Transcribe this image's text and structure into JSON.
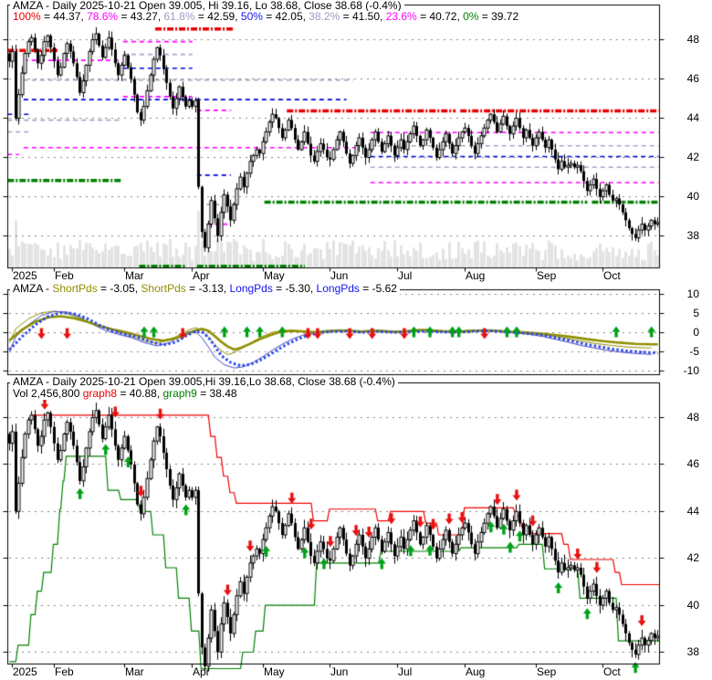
{
  "colors": {
    "red": "#E80000",
    "magenta": "#FF00FF",
    "lavender": "#A4A4C4",
    "blue": "#0000E0",
    "green": "#008000",
    "olive": "#8F8F00",
    "blue_thick": "#2846E8",
    "blue_thin": "#4545C8",
    "arrow_red": "#E81010",
    "arrow_green": "#00A018",
    "volume": "#E3E3E3",
    "text": "#000000"
  },
  "chart_data": [
    {
      "panel": "price-with-fibonacci",
      "type": "candlestick",
      "title": "AMZA - Daily 2025-10-21 Open 39.005, Hi 39.16, Lo 38.68, Close 38.68 (-0.4%)",
      "fib_parts": [
        {
          "label": "100%",
          "rest": " = 44.37, "
        },
        {
          "label": "78.6%",
          "rest": " = 43.27, "
        },
        {
          "label": "61.8%",
          "rest": " = 42.59, "
        },
        {
          "label": "50%",
          "rest": " = 42.05, "
        },
        {
          "label": "38.2%",
          "rest": " = 41.50, "
        },
        {
          "label": "23.6%",
          "rest": " = 40.72, "
        },
        {
          "label": "0%",
          "rest": " = 39.72"
        }
      ],
      "fib_levels": [
        {
          "pct": "100%",
          "value": 44.37
        },
        {
          "pct": "78.6%",
          "value": 43.27
        },
        {
          "pct": "61.8%",
          "value": 42.59
        },
        {
          "pct": "50%",
          "value": 42.05
        },
        {
          "pct": "38.2%",
          "value": 41.5
        },
        {
          "pct": "23.6%",
          "value": 40.72
        },
        {
          "pct": "0%",
          "value": 39.72
        }
      ],
      "y_ticks": [
        48,
        46,
        44,
        42,
        40,
        38
      ],
      "ylim": [
        36.4,
        48.7
      ],
      "x_labels": [
        "2025",
        "Feb",
        "Mar",
        "Apr",
        "May",
        "Jun",
        "Jul",
        "Aug",
        "Sep",
        "Oct"
      ],
      "month_start_bars": [
        1,
        14,
        36,
        57,
        79,
        100,
        121,
        142,
        164,
        185
      ],
      "closes": [
        46.9,
        47.4,
        44.0,
        45.2,
        46.3,
        47.3,
        47.9,
        48.1,
        47.5,
        46.8,
        47.2,
        47.9,
        48.2,
        47.6,
        46.9,
        46.2,
        46.6,
        47.3,
        47.8,
        47.4,
        46.8,
        46.1,
        45.3,
        45.9,
        46.7,
        47.4,
        48.0,
        48.3,
        47.7,
        47.1,
        47.6,
        48.1,
        47.5,
        46.8,
        46.2,
        46.7,
        47.2,
        46.6,
        46.0,
        45.2,
        44.3,
        43.9,
        44.6,
        45.4,
        46.2,
        47.0,
        47.6,
        47.2,
        46.5,
        45.8,
        45.1,
        44.5,
        45.0,
        45.6,
        45.1,
        44.6,
        44.9,
        44.6,
        44.9,
        40.5,
        38.2,
        37.4,
        38.6,
        39.8,
        38.9,
        38.0,
        39.2,
        40.1,
        39.5,
        38.8,
        39.6,
        40.4,
        41.0,
        40.5,
        41.2,
        41.8,
        42.1,
        42.4,
        42.2,
        42.8,
        43.3,
        43.8,
        44.2,
        44.0,
        43.5,
        43.0,
        43.4,
        43.9,
        43.5,
        42.9,
        42.4,
        42.8,
        43.3,
        42.7,
        42.1,
        41.8,
        42.3,
        42.7,
        42.4,
        42.0,
        41.9,
        42.4,
        42.9,
        43.3,
        42.8,
        42.2,
        41.7,
        42.1,
        42.6,
        43.0,
        42.5,
        42.0,
        42.4,
        42.9,
        43.3,
        42.8,
        42.3,
        42.7,
        43.1,
        42.6,
        42.1,
        42.5,
        42.9,
        42.4,
        42.8,
        43.2,
        43.6,
        43.1,
        42.6,
        42.9,
        43.4,
        43.0,
        42.5,
        42.0,
        42.4,
        42.8,
        43.2,
        42.7,
        42.2,
        42.6,
        43.0,
        43.3,
        43.5,
        43.1,
        42.6,
        42.2,
        42.7,
        43.1,
        43.5,
        43.9,
        44.2,
        43.8,
        43.3,
        43.7,
        44.1,
        43.6,
        43.2,
        43.6,
        44.0,
        43.5,
        43.0,
        43.4,
        43.0,
        42.6,
        43.0,
        43.3,
        42.9,
        42.5,
        42.9,
        42.4,
        41.9,
        41.4,
        41.8,
        41.5,
        41.6,
        41.7,
        41.5,
        41.6,
        41.3,
        40.8,
        40.3,
        40.6,
        40.9,
        40.4,
        40.0,
        40.3,
        40.6,
        40.1,
        39.8,
        39.9,
        39.6,
        39.2,
        38.8,
        38.4,
        38.1,
        37.9,
        38.3,
        38.6,
        38.3,
        38.5,
        38.8,
        38.6,
        38.68
      ],
      "segments": [
        [
          47.45,
          0,
          15,
          "red",
          1
        ],
        [
          46.95,
          5,
          35,
          "magenta",
          0
        ],
        [
          45.95,
          5,
          107,
          "lavender",
          0
        ],
        [
          44.95,
          5,
          105,
          "blue",
          0
        ],
        [
          44.2,
          0,
          6,
          "blue",
          0
        ],
        [
          43.9,
          0,
          35,
          "lavender",
          0
        ],
        [
          43.3,
          0,
          6,
          "lavender",
          0
        ],
        [
          42.5,
          5,
          108,
          "magenta",
          0
        ],
        [
          42.15,
          0,
          3,
          "magenta",
          0
        ],
        [
          40.82,
          0,
          35,
          "green",
          1
        ],
        [
          48.55,
          46,
          70,
          "red",
          1
        ],
        [
          47.9,
          36,
          57,
          "magenta",
          0
        ],
        [
          47.25,
          36,
          57,
          "lavender",
          0
        ],
        [
          46.55,
          36,
          57,
          "blue",
          0
        ],
        [
          45.1,
          36,
          57,
          "magenta",
          0
        ],
        [
          44.4,
          59,
          69,
          "magenta",
          0
        ],
        [
          41.1,
          59,
          69,
          "blue",
          0
        ],
        [
          39.6,
          62,
          70,
          "lavender",
          0
        ],
        [
          38.6,
          62,
          68,
          "magenta",
          0
        ],
        [
          36.45,
          41,
          55,
          "green",
          1
        ],
        [
          36.45,
          59,
          92,
          "green",
          1
        ],
        [
          44.37,
          87,
          139,
          "red",
          1
        ],
        [
          44.37,
          141,
          203,
          "red",
          1
        ],
        [
          43.27,
          113,
          175,
          "magenta",
          0
        ],
        [
          43.27,
          177,
          203,
          "magenta",
          0
        ],
        [
          42.59,
          113,
          203,
          "lavender",
          0
        ],
        [
          42.05,
          113,
          139,
          "blue",
          0
        ],
        [
          42.05,
          141,
          203,
          "blue",
          0
        ],
        [
          41.5,
          113,
          203,
          "lavender",
          0
        ],
        [
          40.72,
          113,
          203,
          "magenta",
          0
        ],
        [
          39.72,
          80,
          180,
          "green",
          1
        ],
        [
          39.72,
          182,
          203,
          "green",
          1
        ]
      ],
      "volume_bars_shown": true
    },
    {
      "panel": "oscillator",
      "type": "line",
      "title_parts": [
        {
          "t": "AMZA - "
        },
        {
          "t": "ShortPds"
        },
        {
          "t": " = -3.05, "
        },
        {
          "t": "ShortPds"
        },
        {
          "t": " = -3.13, "
        },
        {
          "t": "LongPds"
        },
        {
          "t": " = -5.30, "
        },
        {
          "t": "LongPds"
        },
        {
          "t": " = -5.62"
        }
      ],
      "series": [
        {
          "name": "ShortPds",
          "last": -3.05
        },
        {
          "name": "ShortPds",
          "last": -3.13
        },
        {
          "name": "LongPds",
          "last": -5.3
        },
        {
          "name": "LongPds",
          "last": -5.62
        }
      ],
      "y_ticks": [
        10,
        5,
        0,
        -5,
        -10
      ],
      "long_pds": [
        [
          0,
          -4.5
        ],
        [
          4,
          -1
        ],
        [
          8,
          2
        ],
        [
          12,
          4.2
        ],
        [
          16,
          5.2
        ],
        [
          20,
          5.0
        ],
        [
          24,
          3.8
        ],
        [
          28,
          2.0
        ],
        [
          32,
          0.5
        ],
        [
          36,
          -0.4
        ],
        [
          40,
          -1.2
        ],
        [
          44,
          -2.4
        ],
        [
          48,
          -3.2
        ],
        [
          52,
          -2.4
        ],
        [
          55,
          -0.8
        ],
        [
          58,
          0.3
        ],
        [
          60,
          0.2
        ],
        [
          62,
          -1.2
        ],
        [
          64,
          -3.5
        ],
        [
          66,
          -6.0
        ],
        [
          69,
          -7.8
        ],
        [
          72,
          -8.6
        ],
        [
          75,
          -8.3
        ],
        [
          78,
          -7.2
        ],
        [
          81,
          -5.8
        ],
        [
          84,
          -4.2
        ],
        [
          87,
          -2.8
        ],
        [
          90,
          -1.6
        ],
        [
          93,
          -0.7
        ],
        [
          96,
          -0.1
        ],
        [
          100,
          0.3
        ],
        [
          105,
          0.4
        ],
        [
          110,
          0.1
        ],
        [
          115,
          0.3
        ],
        [
          120,
          0.1
        ],
        [
          125,
          0.2
        ],
        [
          130,
          0.4
        ],
        [
          135,
          0.2
        ],
        [
          140,
          0.1
        ],
        [
          145,
          0.4
        ],
        [
          150,
          0.5
        ],
        [
          155,
          0.2
        ],
        [
          160,
          -0.1
        ],
        [
          164,
          -0.4
        ],
        [
          168,
          -0.9
        ],
        [
          172,
          -1.6
        ],
        [
          176,
          -2.3
        ],
        [
          180,
          -3.1
        ],
        [
          184,
          -3.7
        ],
        [
          188,
          -4.3
        ],
        [
          192,
          -4.7
        ],
        [
          196,
          -5.0
        ],
        [
          200,
          -5.2
        ],
        [
          202,
          -5.3
        ]
      ],
      "short_pds": [
        [
          0,
          -2
        ],
        [
          4,
          0.8
        ],
        [
          8,
          2.8
        ],
        [
          12,
          4.0
        ],
        [
          16,
          4.3
        ],
        [
          20,
          3.8
        ],
        [
          24,
          2.9
        ],
        [
          28,
          1.8
        ],
        [
          32,
          0.9
        ],
        [
          36,
          0.2
        ],
        [
          40,
          -0.7
        ],
        [
          44,
          -1.6
        ],
        [
          48,
          -2.1
        ],
        [
          52,
          -1.4
        ],
        [
          55,
          -0.4
        ],
        [
          58,
          0.6
        ],
        [
          60,
          1.0
        ],
        [
          62,
          0.5
        ],
        [
          64,
          -0.9
        ],
        [
          66,
          -2.4
        ],
        [
          68,
          -3.6
        ],
        [
          70,
          -4.4
        ],
        [
          72,
          -4.0
        ],
        [
          75,
          -2.9
        ],
        [
          78,
          -1.7
        ],
        [
          81,
          -0.7
        ],
        [
          84,
          0.1
        ],
        [
          88,
          0.5
        ],
        [
          92,
          0.3
        ],
        [
          96,
          0.1
        ],
        [
          100,
          0.4
        ],
        [
          105,
          0.6
        ],
        [
          110,
          0.3
        ],
        [
          115,
          0.5
        ],
        [
          120,
          0.2
        ],
        [
          125,
          0.4
        ],
        [
          130,
          0.7
        ],
        [
          135,
          0.4
        ],
        [
          140,
          0.2
        ],
        [
          145,
          0.5
        ],
        [
          150,
          0.6
        ],
        [
          155,
          0.3
        ],
        [
          160,
          0.1
        ],
        [
          165,
          -0.2
        ],
        [
          170,
          -0.6
        ],
        [
          175,
          -1.1
        ],
        [
          180,
          -1.7
        ],
        [
          185,
          -2.2
        ],
        [
          190,
          -2.6
        ],
        [
          195,
          -2.9
        ],
        [
          200,
          -3.05
        ],
        [
          202,
          -3.05
        ]
      ],
      "arrows_dn_bars": [
        10,
        18,
        54,
        93,
        96,
        106,
        113,
        123,
        148
      ],
      "arrows_up_bars": [
        42,
        45,
        67,
        74,
        78,
        85,
        126,
        131,
        138,
        140,
        155,
        158,
        189,
        200
      ]
    },
    {
      "panel": "price-with-stops",
      "type": "candlestick",
      "title": "AMZA - Daily 2025-10-21 Open 39.005,Hi 39.16,Lo 38.68, Close 38.68 (-0.4%)",
      "vol_parts": [
        {
          "t": "Vol 2,456,800 "
        },
        {
          "t": "graph8"
        },
        {
          "t": " = 40.88, "
        },
        {
          "t": "graph9"
        },
        {
          "t": " = 38.48"
        }
      ],
      "graph8_last": 40.88,
      "graph9_last": 38.48,
      "y_ticks": [
        48,
        46,
        44,
        42,
        40,
        38
      ],
      "x_labels": [
        "2025",
        "Feb",
        "Mar",
        "Apr",
        "May",
        "Jun",
        "Jul",
        "Aug",
        "Sep",
        "Oct"
      ],
      "stop_red": [
        [
          7,
          48.1
        ],
        [
          60,
          48.1
        ],
        [
          62,
          47.2
        ],
        [
          64,
          46.3
        ],
        [
          66,
          45.5
        ],
        [
          68,
          44.8
        ],
        [
          70,
          44.35
        ],
        [
          84,
          44.35
        ],
        [
          94,
          43.6
        ],
        [
          99,
          44.1
        ],
        [
          110,
          44.1
        ],
        [
          114,
          43.6
        ],
        [
          118,
          44.0
        ],
        [
          126,
          44.0
        ],
        [
          129,
          43.5
        ],
        [
          133,
          43.0
        ],
        [
          137,
          43.0
        ],
        [
          141,
          44.15
        ],
        [
          155,
          44.15
        ],
        [
          157,
          43.8
        ],
        [
          159,
          43.3
        ],
        [
          162,
          43.05
        ],
        [
          170,
          43.05
        ],
        [
          172,
          42.6
        ],
        [
          174,
          41.95
        ],
        [
          186,
          41.95
        ],
        [
          188,
          41.4
        ],
        [
          190,
          40.88
        ],
        [
          203,
          40.88
        ]
      ],
      "stop_green": [
        [
          0,
          37.6
        ],
        [
          2,
          38.3
        ],
        [
          6,
          39.6
        ],
        [
          8,
          40.6
        ],
        [
          10,
          41.4
        ],
        [
          13,
          42.6
        ],
        [
          15,
          44.1
        ],
        [
          16,
          45.3
        ],
        [
          17,
          46.35
        ],
        [
          30,
          44.9
        ],
        [
          34,
          44.5
        ],
        [
          40,
          44.0
        ],
        [
          44,
          43.0
        ],
        [
          48,
          41.6
        ],
        [
          52,
          40.3
        ],
        [
          56,
          38.9
        ],
        [
          59,
          37.3
        ],
        [
          72,
          38.0
        ],
        [
          76,
          38.9
        ],
        [
          79,
          40.0
        ],
        [
          95,
          41.8
        ],
        [
          115,
          42.3
        ],
        [
          140,
          42.45
        ],
        [
          158,
          42.6
        ],
        [
          166,
          41.55
        ],
        [
          177,
          40.3
        ],
        [
          189,
          38.48
        ],
        [
          203,
          38.48
        ]
      ],
      "arrows_dn_bars": [
        11,
        33,
        41,
        47,
        68,
        75,
        88,
        94,
        100,
        108,
        112,
        119,
        128,
        132,
        137,
        141,
        152,
        158,
        163,
        177,
        183,
        197
      ],
      "arrows_up_bars": [
        22,
        30,
        37,
        55,
        80,
        92,
        98,
        116,
        125,
        131,
        150,
        154,
        156,
        159,
        171,
        180,
        195
      ]
    }
  ]
}
